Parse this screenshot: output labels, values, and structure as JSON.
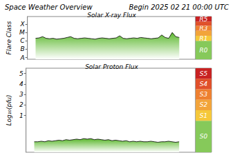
{
  "title": "Space Weather Overview",
  "subtitle": "Begin 2025 02 21 00:00 UTC",
  "chart_data": [
    {
      "type": "line",
      "title": "Solar X-ray Flux",
      "y_label": "Flare Class",
      "color": "#000000",
      "x": [
        3.5,
        5,
        6.5,
        8,
        9.5,
        11,
        12.5,
        14,
        15.5,
        17,
        18.5,
        20,
        21.5,
        23,
        24.5,
        26,
        27.5,
        29,
        30.5,
        32,
        33.5,
        35,
        36.5,
        38,
        39.5,
        41,
        42.5,
        44,
        45.5,
        47,
        48.5,
        50,
        51.5,
        53,
        54.5,
        56,
        57.5,
        59,
        60.5,
        62,
        63.5,
        65
      ],
      "values": [
        3.3,
        3.35,
        3.5,
        3.3,
        3.25,
        3.3,
        3.2,
        3.25,
        3.3,
        3.4,
        3.5,
        3.3,
        3.25,
        3.3,
        3.35,
        3.3,
        3.25,
        3.2,
        3.3,
        3.35,
        3.3,
        3.25,
        3.3,
        3.35,
        3.6,
        3.3,
        3.25,
        3.3,
        3.35,
        3.3,
        3.4,
        3.35,
        3.3,
        3.25,
        3.3,
        3.35,
        3.7,
        3.4,
        3.3,
        4.0,
        3.5,
        3.4
      ],
      "xlim": [
        0,
        72
      ],
      "ylim": [
        0.8,
        5.9
      ],
      "yticks": [
        {
          "value": 1,
          "label": "A"
        },
        {
          "value": 2,
          "label": "B"
        },
        {
          "value": 3,
          "label": "C"
        },
        {
          "value": 4,
          "label": "M"
        },
        {
          "value": 5,
          "label": "X"
        }
      ],
      "grid": false,
      "tick_labels": "y",
      "scale_bands": [
        {
          "from": 0.8,
          "to": 3.0,
          "label": "R0",
          "color": "#86c95a"
        },
        {
          "from": 3.0,
          "to": 3.6,
          "label": "R1",
          "color": "#f5c83a"
        },
        {
          "from": 3.6,
          "to": 4.2,
          "label": null,
          "color": "#f2a43a"
        },
        {
          "from": 4.2,
          "to": 4.8,
          "label": "R3",
          "color": "#ee8030"
        },
        {
          "from": 4.8,
          "to": 5.3,
          "label": null,
          "color": "#e0502a"
        },
        {
          "from": 5.3,
          "to": 5.9,
          "label": "R5",
          "color": "#c82222"
        }
      ]
    },
    {
      "type": "line",
      "title": "Solar Proton Flux",
      "y_label": "Log₁₀(pfu)",
      "color": "#000000",
      "x": [
        3.5,
        5,
        6.5,
        8,
        9.5,
        11,
        12.5,
        14,
        15.5,
        17,
        18.5,
        20,
        21.5,
        23,
        24.5,
        26,
        27.5,
        29,
        30.5,
        32,
        33.5,
        35,
        36.5,
        38,
        39.5,
        41,
        42.5,
        44,
        45.5,
        47,
        48.5,
        50,
        51.5,
        53,
        54.5,
        56,
        57.5,
        59,
        60.5,
        62,
        63.5,
        65
      ],
      "values": [
        -1.5,
        -1.5,
        -1.45,
        -1.5,
        -1.4,
        -1.45,
        -1.4,
        -1.35,
        -1.4,
        -1.3,
        -1.35,
        -1.3,
        -1.25,
        -1.3,
        -1.2,
        -1.25,
        -1.2,
        -1.3,
        -1.25,
        -1.3,
        -1.35,
        -1.3,
        -1.4,
        -1.35,
        -1.4,
        -1.45,
        -1.4,
        -1.5,
        -1.45,
        -1.5,
        -1.45,
        -1.5,
        -1.5,
        -1.45,
        -1.5,
        -1.55,
        -1.5,
        -1.5,
        -1.45,
        -1.5,
        -1.55,
        -1.5
      ],
      "xlim": [
        0,
        72
      ],
      "ylim": [
        -2.5,
        5.5
      ],
      "yticks": [
        1,
        2,
        3,
        4,
        5
      ],
      "grid": false,
      "tick_labels": "y",
      "scale_bands": [
        {
          "from": -2.5,
          "to": 0.5,
          "label": "S0",
          "color": "#86c95a"
        },
        {
          "from": 0.5,
          "to": 1.5,
          "label": "S1",
          "color": "#f5c83a"
        },
        {
          "from": 1.5,
          "to": 2.5,
          "label": "S2",
          "color": "#f2a43a"
        },
        {
          "from": 2.5,
          "to": 3.5,
          "label": "S3",
          "color": "#ee8030"
        },
        {
          "from": 3.5,
          "to": 4.5,
          "label": "S4",
          "color": "#e0502a"
        },
        {
          "from": 4.5,
          "to": 5.5,
          "label": "S5",
          "color": "#c82222"
        }
      ]
    }
  ]
}
